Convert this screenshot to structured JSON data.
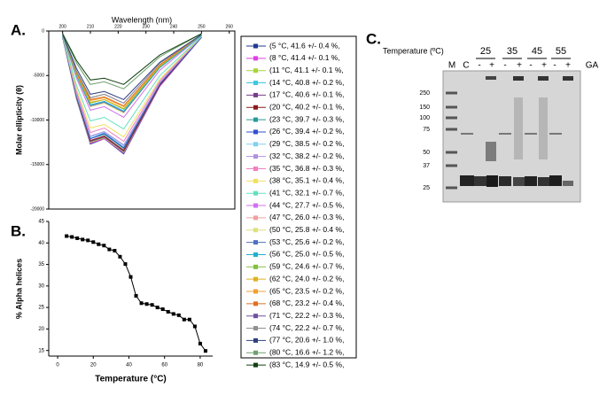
{
  "chart_data": [
    {
      "type": "line",
      "panel_label": "A.",
      "title": "Wavelength (nm)",
      "y_label": "Molar ellipticity (θ)",
      "x": [
        200,
        205,
        210,
        215,
        222,
        235,
        250
      ],
      "xlim": [
        195,
        262
      ],
      "xticks": [
        200,
        210,
        220,
        230,
        240,
        250,
        260
      ],
      "ylim": [
        -20000,
        0
      ],
      "yticks": [
        0,
        -5000,
        -10000,
        -15000,
        -20000
      ],
      "legend": "outside-right",
      "series": [
        {
          "name": "(5 °C, 41.6 +/- 0.4 %,",
          "color": "#1f3a93",
          "values": [
            -700,
            -7600,
            -12700,
            -12100,
            -13800,
            -6200,
            -700
          ]
        },
        {
          "name": "(8 °C, 41.4 +/- 0.1 %,",
          "color": "#e040e0",
          "values": [
            -700,
            -7500,
            -12600,
            -12100,
            -13700,
            -6200,
            -700
          ]
        },
        {
          "name": "(11 °C, 41.1 +/- 0.1 %,",
          "color": "#a6d63a",
          "values": [
            -700,
            -7500,
            -12500,
            -12000,
            -13600,
            -6100,
            -700
          ]
        },
        {
          "name": "(14 °C, 40.8 +/- 0.2 %,",
          "color": "#3cc8e0",
          "values": [
            -700,
            -7400,
            -12400,
            -11900,
            -13500,
            -6100,
            -700
          ]
        },
        {
          "name": "(17 °C, 40.6 +/- 0.1 %,",
          "color": "#7a3a8a",
          "values": [
            -700,
            -7400,
            -12400,
            -11900,
            -13500,
            -6100,
            -700
          ]
        },
        {
          "name": "(20 °C, 40.2 +/- 0.1 %,",
          "color": "#8b1a1a",
          "values": [
            -700,
            -7400,
            -12300,
            -11800,
            -13400,
            -6000,
            -700
          ]
        },
        {
          "name": "(23 °C, 39.7 +/- 0.3 %,",
          "color": "#2a9a9a",
          "values": [
            -700,
            -7300,
            -12100,
            -11600,
            -13200,
            -5900,
            -700
          ]
        },
        {
          "name": "(26 °C, 39.4 +/- 0.2 %,",
          "color": "#3050d0",
          "values": [
            -700,
            -7200,
            -12100,
            -11500,
            -13100,
            -5900,
            -700
          ]
        },
        {
          "name": "(29 °C, 38.5 +/- 0.2 %,",
          "color": "#80d0f0",
          "values": [
            -600,
            -7100,
            -11900,
            -11400,
            -12900,
            -5800,
            -600
          ]
        },
        {
          "name": "(32 °C, 38.2 +/- 0.2 %,",
          "color": "#b090e0",
          "values": [
            -600,
            -7000,
            -11800,
            -11300,
            -12800,
            -5800,
            -600
          ]
        },
        {
          "name": "(35 °C, 36.8 +/- 0.3 %,",
          "color": "#f080c0",
          "values": [
            -600,
            -6800,
            -11400,
            -10900,
            -12400,
            -5600,
            -600
          ]
        },
        {
          "name": "(38 °C, 35.1 +/- 0.4 %,",
          "color": "#f0e060",
          "values": [
            -600,
            -6500,
            -10900,
            -10500,
            -11900,
            -5400,
            -600
          ]
        },
        {
          "name": "(41 °C, 32.1 +/- 0.7 %,",
          "color": "#60e0c0",
          "values": [
            -600,
            -6100,
            -10100,
            -9700,
            -11000,
            -5000,
            -600
          ]
        },
        {
          "name": "(44 °C, 27.7 +/- 0.5 %,",
          "color": "#d070f0",
          "values": [
            -500,
            -5300,
            -8900,
            -8500,
            -9700,
            -4400,
            -500
          ]
        },
        {
          "name": "(47 °C, 26.0 +/- 0.3 %,",
          "color": "#f0a0a0",
          "values": [
            -500,
            -5100,
            -8500,
            -8100,
            -9200,
            -4100,
            -500
          ]
        },
        {
          "name": "(50 °C, 25.8 +/- 0.4 %,",
          "color": "#e0e080",
          "values": [
            -500,
            -5100,
            -8500,
            -8100,
            -9200,
            -4100,
            -500
          ]
        },
        {
          "name": "(53 °C, 25.6 +/- 0.2 %,",
          "color": "#5070c0",
          "values": [
            -500,
            -5000,
            -8400,
            -8000,
            -9100,
            -4100,
            -500
          ]
        },
        {
          "name": "(56 °C, 25.0 +/- 0.5 %,",
          "color": "#20b0d0",
          "values": [
            -500,
            -5000,
            -8300,
            -7900,
            -9000,
            -4100,
            -500
          ]
        },
        {
          "name": "(59 °C, 24.6 +/- 0.7 %,",
          "color": "#80c040",
          "values": [
            -400,
            -4800,
            -8100,
            -7700,
            -8800,
            -4000,
            -400
          ]
        },
        {
          "name": "(62 °C, 24.0 +/- 0.2 %,",
          "color": "#e0b020",
          "values": [
            -400,
            -4800,
            -8000,
            -7700,
            -8700,
            -3900,
            -400
          ]
        },
        {
          "name": "(65 °C, 23.5 +/- 0.2 %,",
          "color": "#f0a030",
          "values": [
            -400,
            -4700,
            -7800,
            -7500,
            -8500,
            -3800,
            -400
          ]
        },
        {
          "name": "(68 °C, 23.2 +/- 0.4 %,",
          "color": "#e07020",
          "values": [
            -400,
            -4600,
            -7700,
            -7400,
            -8400,
            -3800,
            -400
          ]
        },
        {
          "name": "(71 °C, 22.2 +/- 0.3 %,",
          "color": "#7050a0",
          "values": [
            -400,
            -4500,
            -7500,
            -7100,
            -8100,
            -3600,
            -400
          ]
        },
        {
          "name": "(74 °C, 22.2 +/- 0.7 %,",
          "color": "#909090",
          "values": [
            -400,
            -4500,
            -7500,
            -7100,
            -8100,
            -3600,
            -400
          ]
        },
        {
          "name": "(77 °C, 20.6 +/- 1.0 %,",
          "color": "#304080",
          "values": [
            -400,
            -4200,
            -7100,
            -6800,
            -7700,
            -3500,
            -400
          ]
        },
        {
          "name": "(80 °C, 16.6 +/- 1.2 %,",
          "color": "#70a070",
          "values": [
            -300,
            -3600,
            -6000,
            -5700,
            -6500,
            -2900,
            -300
          ]
        },
        {
          "name": "(83 °C, 14.9 +/- 0.5 %,",
          "color": "#104010",
          "values": [
            -300,
            -3300,
            -5500,
            -5300,
            -6000,
            -2700,
            -300
          ]
        }
      ]
    },
    {
      "type": "line",
      "panel_label": "B.",
      "x_label": "Temperature (°C)",
      "y_label": "% Alpha helices",
      "color": "#000000",
      "x": [
        5,
        8,
        11,
        14,
        17,
        20,
        23,
        26,
        29,
        32,
        35,
        38,
        41,
        44,
        47,
        50,
        53,
        56,
        59,
        62,
        65,
        68,
        71,
        74,
        77,
        80,
        83
      ],
      "values": [
        41.6,
        41.4,
        41.1,
        40.8,
        40.6,
        40.2,
        39.7,
        39.4,
        38.5,
        38.2,
        36.8,
        35.1,
        32.1,
        27.7,
        26.0,
        25.8,
        25.6,
        25.0,
        24.6,
        24.0,
        23.5,
        23.2,
        22.2,
        22.2,
        20.6,
        16.6,
        14.9
      ],
      "xlim": [
        -5,
        87
      ],
      "xticks": [
        0,
        20,
        40,
        60,
        80
      ],
      "ylim": [
        13.7,
        45
      ],
      "yticks": [
        15,
        20,
        25,
        30,
        35,
        40,
        45
      ]
    },
    {
      "type": "gel",
      "panel_label": "C.",
      "title": "Temperature (ºC)",
      "groups": [
        "25",
        "35",
        "45",
        "55"
      ],
      "lanes": [
        "M",
        "C",
        "-",
        "+",
        "-",
        "+",
        "-",
        "+",
        "-",
        "+"
      ],
      "treatment_label": "GA",
      "marker_sizes": [
        250,
        150,
        100,
        75,
        50,
        37,
        25
      ]
    }
  ]
}
